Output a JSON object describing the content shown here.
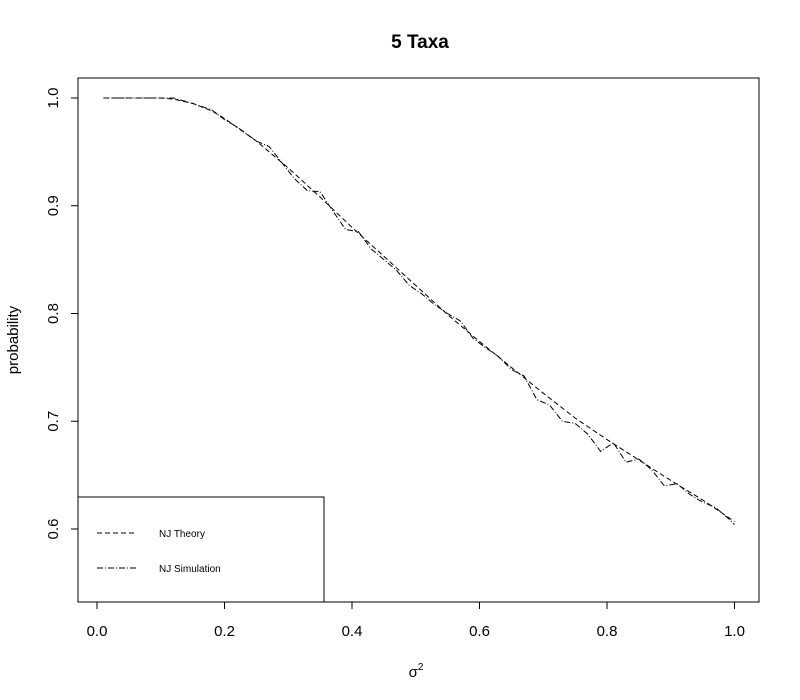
{
  "chart_data": {
    "type": "line",
    "title": "5 Taxa",
    "xlabel": "σ",
    "xlabel_superscript": "2",
    "ylabel": "probability",
    "xlim": [
      0,
      1
    ],
    "ylim": [
      0.6,
      1.0
    ],
    "xticks": [
      0.0,
      0.2,
      0.4,
      0.6,
      0.8,
      1.0
    ],
    "xtick_labels": [
      "0.0",
      "0.2",
      "0.4",
      "0.6",
      "0.8",
      "1.0"
    ],
    "yticks": [
      0.6,
      0.7,
      0.8,
      0.9,
      1.0
    ],
    "ytick_labels": [
      "0.6",
      "0.7",
      "0.8",
      "0.9",
      "1.0"
    ],
    "grid": false,
    "legend_position": "bottom-left",
    "series": [
      {
        "name": "NJ Theory",
        "style": "dashed",
        "color": "#000000",
        "x": [
          0.01,
          0.05,
          0.1,
          0.12,
          0.15,
          0.18,
          0.2,
          0.25,
          0.3,
          0.35,
          0.4,
          0.45,
          0.5,
          0.55,
          0.6,
          0.65,
          0.7,
          0.75,
          0.8,
          0.85,
          0.9,
          0.95,
          1.0
        ],
        "y": [
          1.0,
          1.0,
          1.0,
          0.999,
          0.995,
          0.988,
          0.981,
          0.96,
          0.935,
          0.908,
          0.88,
          0.853,
          0.826,
          0.799,
          0.774,
          0.75,
          0.726,
          0.703,
          0.683,
          0.664,
          0.645,
          0.627,
          0.607
        ]
      },
      {
        "name": "NJ Simulation",
        "style": "dashdot",
        "color": "#000000",
        "x": [
          0.01,
          0.05,
          0.1,
          0.12,
          0.15,
          0.18,
          0.2,
          0.22,
          0.25,
          0.27,
          0.29,
          0.31,
          0.33,
          0.35,
          0.37,
          0.39,
          0.41,
          0.43,
          0.45,
          0.47,
          0.49,
          0.51,
          0.53,
          0.55,
          0.57,
          0.59,
          0.61,
          0.63,
          0.65,
          0.67,
          0.69,
          0.71,
          0.73,
          0.75,
          0.77,
          0.79,
          0.81,
          0.83,
          0.85,
          0.87,
          0.89,
          0.91,
          0.93,
          0.95,
          0.97,
          0.99,
          1.0
        ],
        "y": [
          1.0,
          1.0,
          1.0,
          1.0,
          0.995,
          0.989,
          0.98,
          0.973,
          0.96,
          0.955,
          0.94,
          0.925,
          0.914,
          0.913,
          0.895,
          0.878,
          0.876,
          0.86,
          0.85,
          0.84,
          0.826,
          0.818,
          0.808,
          0.8,
          0.793,
          0.777,
          0.768,
          0.76,
          0.748,
          0.742,
          0.72,
          0.715,
          0.7,
          0.698,
          0.688,
          0.672,
          0.68,
          0.662,
          0.665,
          0.655,
          0.64,
          0.642,
          0.632,
          0.625,
          0.62,
          0.61,
          0.604
        ]
      }
    ]
  }
}
